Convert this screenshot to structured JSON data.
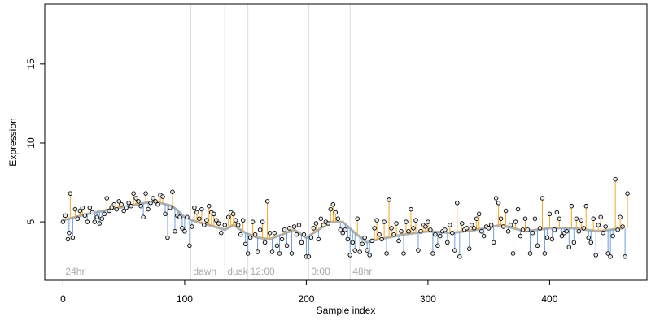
{
  "chart_data": {
    "type": "scatter",
    "title": "",
    "xlabel": "Sample index",
    "ylabel": "Expression",
    "xlim": [
      -15,
      480
    ],
    "ylim": [
      1.3,
      18.8
    ],
    "xticks": [
      0,
      100,
      200,
      300,
      400
    ],
    "yticks": [
      5,
      10,
      15
    ],
    "grid": false,
    "legend": "none",
    "colors": {
      "above_trend": "#f5a623",
      "below_trend": "#6f9fd8",
      "trend": "#b0b0b0",
      "point_fill": "#e8e8e8",
      "point_stroke": "#000000",
      "annotation_line": "#dddddd",
      "annotation_text": "#aaaaaa"
    },
    "annotations": [
      {
        "label": "24hr",
        "x": 0
      },
      {
        "label": "dawn",
        "x": 105
      },
      {
        "label": "dusk",
        "x": 133
      },
      {
        "label": "12:00",
        "x": 152
      },
      {
        "label": "0:00",
        "x": 202
      },
      {
        "label": "48hr",
        "x": 236
      }
    ],
    "trend": [
      [
        0,
        5.1
      ],
      [
        20,
        5.5
      ],
      [
        40,
        5.8
      ],
      [
        60,
        6.1
      ],
      [
        75,
        6.3
      ],
      [
        90,
        6.0
      ],
      [
        100,
        5.3
      ],
      [
        110,
        5.0
      ],
      [
        120,
        4.8
      ],
      [
        133,
        4.5
      ],
      [
        140,
        4.8
      ],
      [
        150,
        4.3
      ],
      [
        160,
        4.0
      ],
      [
        170,
        3.9
      ],
      [
        180,
        4.2
      ],
      [
        190,
        4.5
      ],
      [
        200,
        4.0
      ],
      [
        210,
        4.5
      ],
      [
        220,
        5.0
      ],
      [
        230,
        5.0
      ],
      [
        240,
        4.3
      ],
      [
        250,
        3.7
      ],
      [
        260,
        3.9
      ],
      [
        280,
        4.2
      ],
      [
        300,
        4.4
      ],
      [
        320,
        4.3
      ],
      [
        340,
        4.5
      ],
      [
        360,
        4.8
      ],
      [
        380,
        4.4
      ],
      [
        400,
        4.6
      ],
      [
        420,
        4.6
      ],
      [
        440,
        4.4
      ],
      [
        460,
        4.6
      ]
    ],
    "points": [
      [
        0,
        5.0
      ],
      [
        2,
        5.4
      ],
      [
        4,
        3.9
      ],
      [
        5,
        4.3
      ],
      [
        6,
        6.8
      ],
      [
        8,
        4.0
      ],
      [
        10,
        5.8
      ],
      [
        12,
        5.2
      ],
      [
        14,
        5.7
      ],
      [
        16,
        5.9
      ],
      [
        18,
        5.4
      ],
      [
        20,
        5.0
      ],
      [
        22,
        5.9
      ],
      [
        24,
        5.6
      ],
      [
        26,
        5.0
      ],
      [
        28,
        5.3
      ],
      [
        30,
        4.9
      ],
      [
        32,
        5.2
      ],
      [
        34,
        5.5
      ],
      [
        36,
        6.5
      ],
      [
        38,
        5.7
      ],
      [
        40,
        5.9
      ],
      [
        42,
        6.1
      ],
      [
        44,
        5.8
      ],
      [
        46,
        6.3
      ],
      [
        48,
        6.1
      ],
      [
        50,
        5.7
      ],
      [
        52,
        5.9
      ],
      [
        54,
        6.2
      ],
      [
        56,
        6.0
      ],
      [
        58,
        6.8
      ],
      [
        60,
        6.5
      ],
      [
        62,
        6.3
      ],
      [
        64,
        6.0
      ],
      [
        66,
        5.3
      ],
      [
        68,
        6.8
      ],
      [
        70,
        5.8
      ],
      [
        72,
        6.2
      ],
      [
        74,
        6.5
      ],
      [
        76,
        6.3
      ],
      [
        78,
        6.1
      ],
      [
        80,
        6.7
      ],
      [
        82,
        6.6
      ],
      [
        84,
        5.5
      ],
      [
        86,
        4.0
      ],
      [
        88,
        5.9
      ],
      [
        90,
        6.9
      ],
      [
        92,
        4.4
      ],
      [
        94,
        5.4
      ],
      [
        96,
        5.3
      ],
      [
        98,
        4.6
      ],
      [
        100,
        4.4
      ],
      [
        102,
        5.3
      ],
      [
        104,
        3.5
      ],
      [
        106,
        4.7
      ],
      [
        108,
        5.9
      ],
      [
        110,
        5.6
      ],
      [
        112,
        5.2
      ],
      [
        114,
        5.8
      ],
      [
        116,
        4.8
      ],
      [
        118,
        5.1
      ],
      [
        120,
        6.0
      ],
      [
        122,
        5.6
      ],
      [
        124,
        5.5
      ],
      [
        126,
        5.1
      ],
      [
        128,
        4.9
      ],
      [
        130,
        4.3
      ],
      [
        133,
        4.8
      ],
      [
        136,
        5.3
      ],
      [
        138,
        5.6
      ],
      [
        140,
        5.5
      ],
      [
        142,
        5.1
      ],
      [
        144,
        4.8
      ],
      [
        146,
        4.2
      ],
      [
        148,
        5.1
      ],
      [
        150,
        3.6
      ],
      [
        152,
        3.0
      ],
      [
        154,
        4.0
      ],
      [
        156,
        5.0
      ],
      [
        158,
        4.2
      ],
      [
        160,
        3.1
      ],
      [
        162,
        4.5
      ],
      [
        164,
        5.0
      ],
      [
        166,
        3.7
      ],
      [
        168,
        6.3
      ],
      [
        170,
        4.3
      ],
      [
        172,
        3.1
      ],
      [
        174,
        4.3
      ],
      [
        176,
        3.5
      ],
      [
        178,
        3.0
      ],
      [
        180,
        3.9
      ],
      [
        182,
        4.5
      ],
      [
        184,
        3.5
      ],
      [
        186,
        4.6
      ],
      [
        188,
        3.0
      ],
      [
        190,
        4.7
      ],
      [
        192,
        4.2
      ],
      [
        194,
        4.8
      ],
      [
        196,
        3.7
      ],
      [
        198,
        4.2
      ],
      [
        200,
        2.8
      ],
      [
        202,
        2.8
      ],
      [
        204,
        4.0
      ],
      [
        206,
        4.6
      ],
      [
        208,
        4.9
      ],
      [
        210,
        3.9
      ],
      [
        212,
        5.2
      ],
      [
        214,
        4.8
      ],
      [
        216,
        5.0
      ],
      [
        218,
        4.9
      ],
      [
        220,
        5.8
      ],
      [
        222,
        6.1
      ],
      [
        224,
        5.6
      ],
      [
        226,
        5.2
      ],
      [
        228,
        4.5
      ],
      [
        230,
        4.3
      ],
      [
        232,
        4.5
      ],
      [
        234,
        3.9
      ],
      [
        236,
        2.9
      ],
      [
        238,
        3.7
      ],
      [
        240,
        3.2
      ],
      [
        242,
        5.2
      ],
      [
        244,
        3.1
      ],
      [
        246,
        3.6
      ],
      [
        248,
        4.0
      ],
      [
        250,
        3.2
      ],
      [
        252,
        2.9
      ],
      [
        254,
        3.8
      ],
      [
        256,
        4.6
      ],
      [
        258,
        5.1
      ],
      [
        260,
        4.2
      ],
      [
        262,
        3.9
      ],
      [
        264,
        5.0
      ],
      [
        266,
        3.0
      ],
      [
        268,
        6.4
      ],
      [
        270,
        4.6
      ],
      [
        272,
        4.2
      ],
      [
        274,
        4.9
      ],
      [
        276,
        3.8
      ],
      [
        278,
        4.4
      ],
      [
        280,
        3.0
      ],
      [
        282,
        5.0
      ],
      [
        284,
        4.4
      ],
      [
        286,
        5.8
      ],
      [
        288,
        4.6
      ],
      [
        290,
        5.1
      ],
      [
        292,
        3.2
      ],
      [
        294,
        4.4
      ],
      [
        296,
        4.8
      ],
      [
        298,
        4.7
      ],
      [
        300,
        5.0
      ],
      [
        302,
        4.5
      ],
      [
        304,
        3.0
      ],
      [
        306,
        4.2
      ],
      [
        308,
        3.5
      ],
      [
        310,
        4.1
      ],
      [
        312,
        4.4
      ],
      [
        314,
        4.5
      ],
      [
        316,
        3.7
      ],
      [
        318,
        4.8
      ],
      [
        320,
        4.3
      ],
      [
        322,
        3.2
      ],
      [
        324,
        6.2
      ],
      [
        326,
        2.8
      ],
      [
        328,
        4.9
      ],
      [
        330,
        4.5
      ],
      [
        332,
        4.6
      ],
      [
        334,
        3.3
      ],
      [
        336,
        4.8
      ],
      [
        338,
        4.6
      ],
      [
        340,
        5.2
      ],
      [
        342,
        5.5
      ],
      [
        344,
        4.4
      ],
      [
        346,
        4.1
      ],
      [
        348,
        4.7
      ],
      [
        350,
        4.6
      ],
      [
        352,
        4.8
      ],
      [
        354,
        3.7
      ],
      [
        356,
        6.5
      ],
      [
        358,
        6.2
      ],
      [
        360,
        5.2
      ],
      [
        362,
        4.7
      ],
      [
        364,
        5.7
      ],
      [
        366,
        4.4
      ],
      [
        368,
        4.8
      ],
      [
        370,
        3.0
      ],
      [
        372,
        5.0
      ],
      [
        374,
        5.8
      ],
      [
        376,
        4.1
      ],
      [
        378,
        4.5
      ],
      [
        380,
        5.2
      ],
      [
        382,
        4.5
      ],
      [
        384,
        3.0
      ],
      [
        386,
        4.3
      ],
      [
        388,
        5.2
      ],
      [
        390,
        3.5
      ],
      [
        392,
        4.6
      ],
      [
        394,
        6.5
      ],
      [
        396,
        3.0
      ],
      [
        398,
        4.0
      ],
      [
        400,
        5.5
      ],
      [
        402,
        3.9
      ],
      [
        404,
        4.5
      ],
      [
        406,
        5.6
      ],
      [
        408,
        5.2
      ],
      [
        410,
        4.1
      ],
      [
        412,
        4.3
      ],
      [
        414,
        4.4
      ],
      [
        416,
        3.4
      ],
      [
        418,
        6.0
      ],
      [
        420,
        3.7
      ],
      [
        422,
        5.2
      ],
      [
        424,
        4.4
      ],
      [
        426,
        5.1
      ],
      [
        428,
        4.6
      ],
      [
        430,
        6.0
      ],
      [
        432,
        4.0
      ],
      [
        434,
        3.7
      ],
      [
        436,
        5.2
      ],
      [
        438,
        2.9
      ],
      [
        440,
        4.8
      ],
      [
        442,
        5.3
      ],
      [
        444,
        4.3
      ],
      [
        446,
        4.7
      ],
      [
        448,
        3.0
      ],
      [
        450,
        2.8
      ],
      [
        452,
        4.1
      ],
      [
        454,
        7.7
      ],
      [
        456,
        4.5
      ],
      [
        458,
        5.3
      ],
      [
        460,
        4.7
      ],
      [
        462,
        2.8
      ],
      [
        464,
        6.8
      ]
    ]
  }
}
